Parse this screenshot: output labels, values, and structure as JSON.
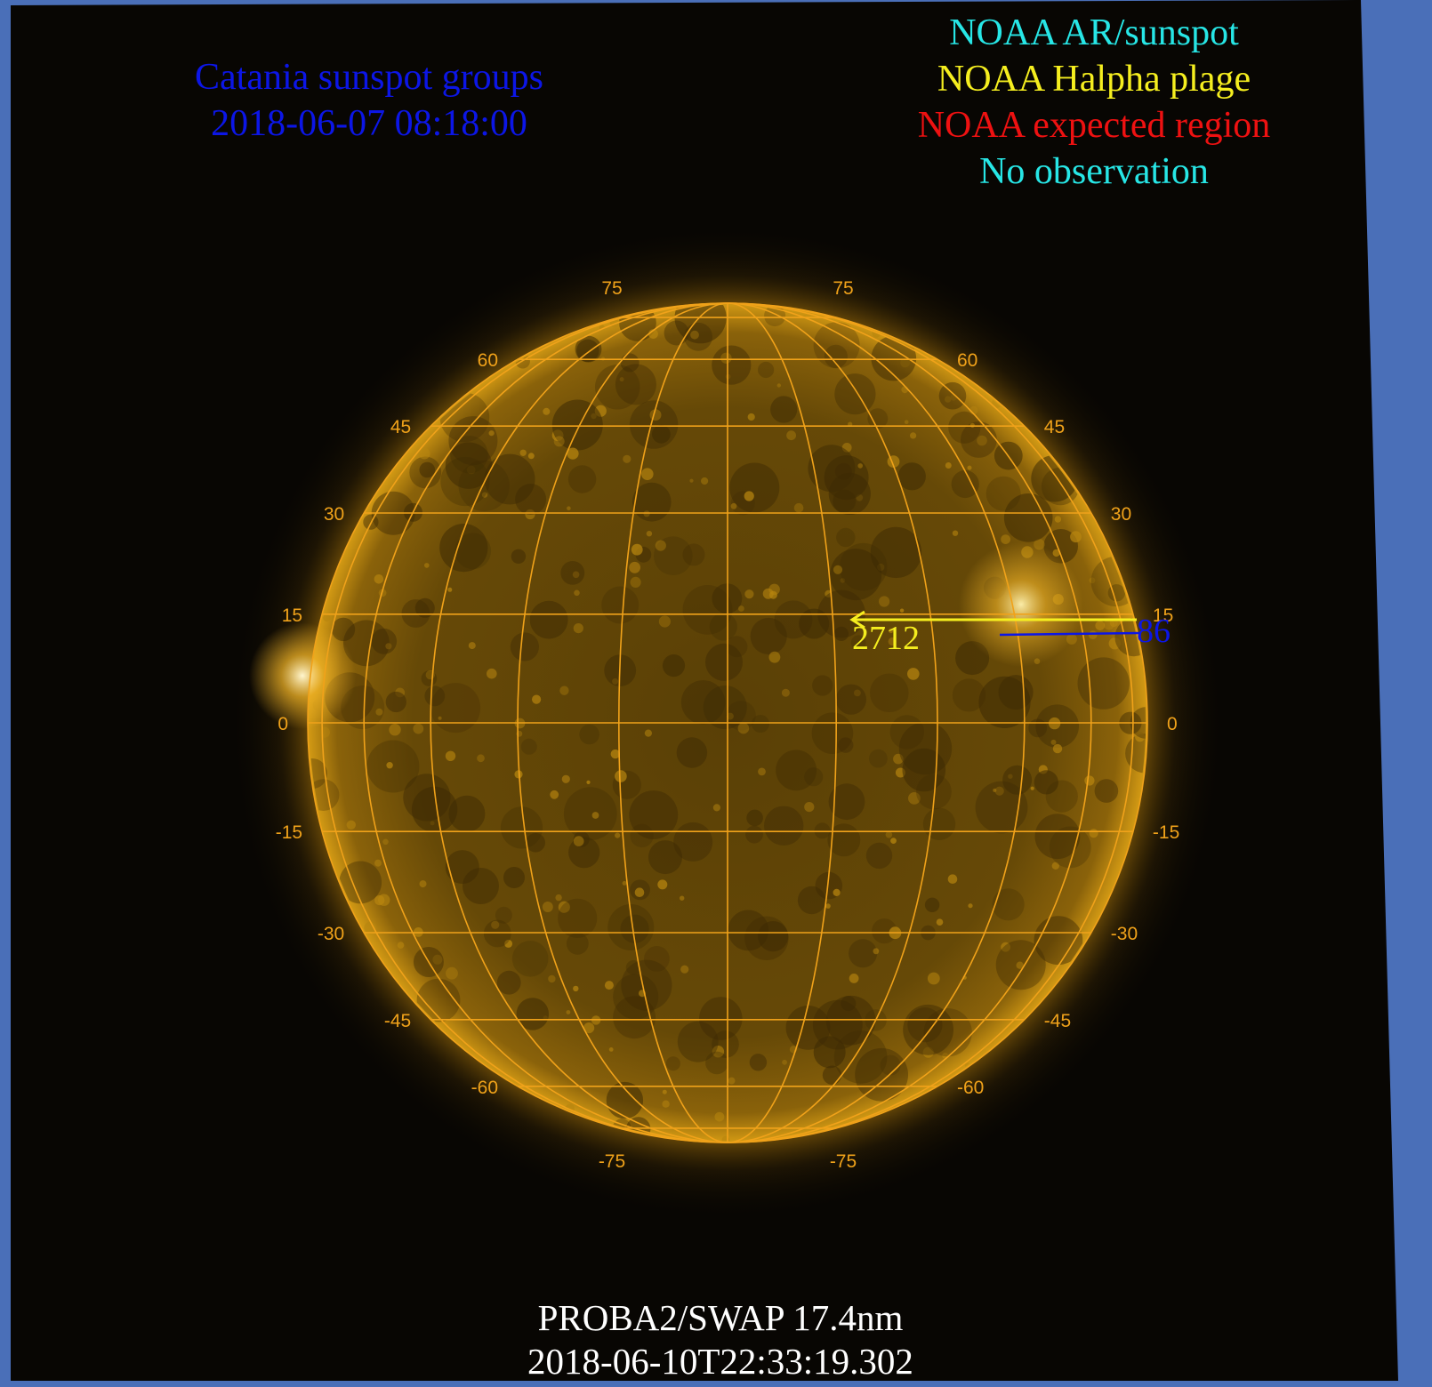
{
  "catania": {
    "title": "Catania sunspot groups",
    "date": "2018-06-07 08:18:00",
    "color": "#0c16e6"
  },
  "legend": {
    "items": [
      {
        "label": "NOAA AR/sunspot",
        "color": "#27e6e6"
      },
      {
        "label": "NOAA Halpha plage",
        "color": "#f5ee1f"
      },
      {
        "label": "NOAA expected region",
        "color": "#ee1111"
      },
      {
        "label": "No observation",
        "color": "#27e6e6"
      }
    ]
  },
  "caption": {
    "instrument": "PROBA2/SWAP 17.4nm",
    "timestamp": "2018-06-10T22:33:19.302"
  },
  "regions": {
    "noaa_label": "2712",
    "noaa_color": "#f5ee1f",
    "catania_label": "86",
    "catania_color": "#0c16e6"
  },
  "grid": {
    "color": "#f0a21a",
    "latitudes": [
      75,
      60,
      45,
      30,
      15,
      0,
      -15,
      -30,
      -45,
      -60,
      -75
    ],
    "left_labels": [
      "75",
      "60",
      "45",
      "30",
      "15",
      "0",
      "-15",
      "-30",
      "-45",
      "-60",
      "-75"
    ],
    "right_labels": [
      "75",
      "60",
      "45",
      "30",
      "15",
      "0",
      "-15",
      "-30",
      "-45",
      "-60",
      "-75"
    ]
  },
  "colors": {
    "frame": "#4a6fb8",
    "sky": "#080603",
    "sun_core": "#5c4206",
    "sun_limb": "#d89a10"
  }
}
